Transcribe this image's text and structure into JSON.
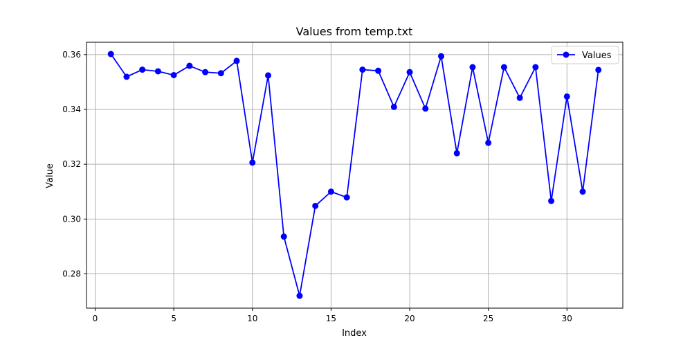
{
  "chart_data": {
    "type": "line",
    "title": "Values from temp.txt",
    "xlabel": "Index",
    "ylabel": "Value",
    "xlim": [
      -0.55,
      33.55
    ],
    "ylim": [
      0.2675,
      0.3645
    ],
    "xticks": [
      0,
      5,
      10,
      15,
      20,
      25,
      30
    ],
    "yticks": [
      0.28,
      0.3,
      0.32,
      0.34,
      0.36
    ],
    "ytick_labels": [
      "0.28",
      "0.30",
      "0.32",
      "0.34",
      "0.36"
    ],
    "grid": true,
    "legend_position": "top-right",
    "series": [
      {
        "name": "Values",
        "color": "#0000ff",
        "marker": "circle",
        "x": [
          1,
          2,
          3,
          4,
          5,
          6,
          7,
          8,
          9,
          10,
          11,
          12,
          13,
          14,
          15,
          16,
          17,
          18,
          19,
          20,
          21,
          22,
          23,
          24,
          25,
          26,
          27,
          28,
          29,
          30,
          31,
          32
        ],
        "values": [
          0.3602,
          0.3519,
          0.3545,
          0.3539,
          0.3525,
          0.3559,
          0.3536,
          0.3532,
          0.3577,
          0.3206,
          0.3524,
          0.2936,
          0.272,
          0.3048,
          0.31,
          0.3079,
          0.3545,
          0.3541,
          0.3409,
          0.3536,
          0.3403,
          0.3594,
          0.324,
          0.3554,
          0.3278,
          0.3554,
          0.3442,
          0.3554,
          0.3066,
          0.3447,
          0.31,
          0.3544
        ]
      }
    ]
  }
}
